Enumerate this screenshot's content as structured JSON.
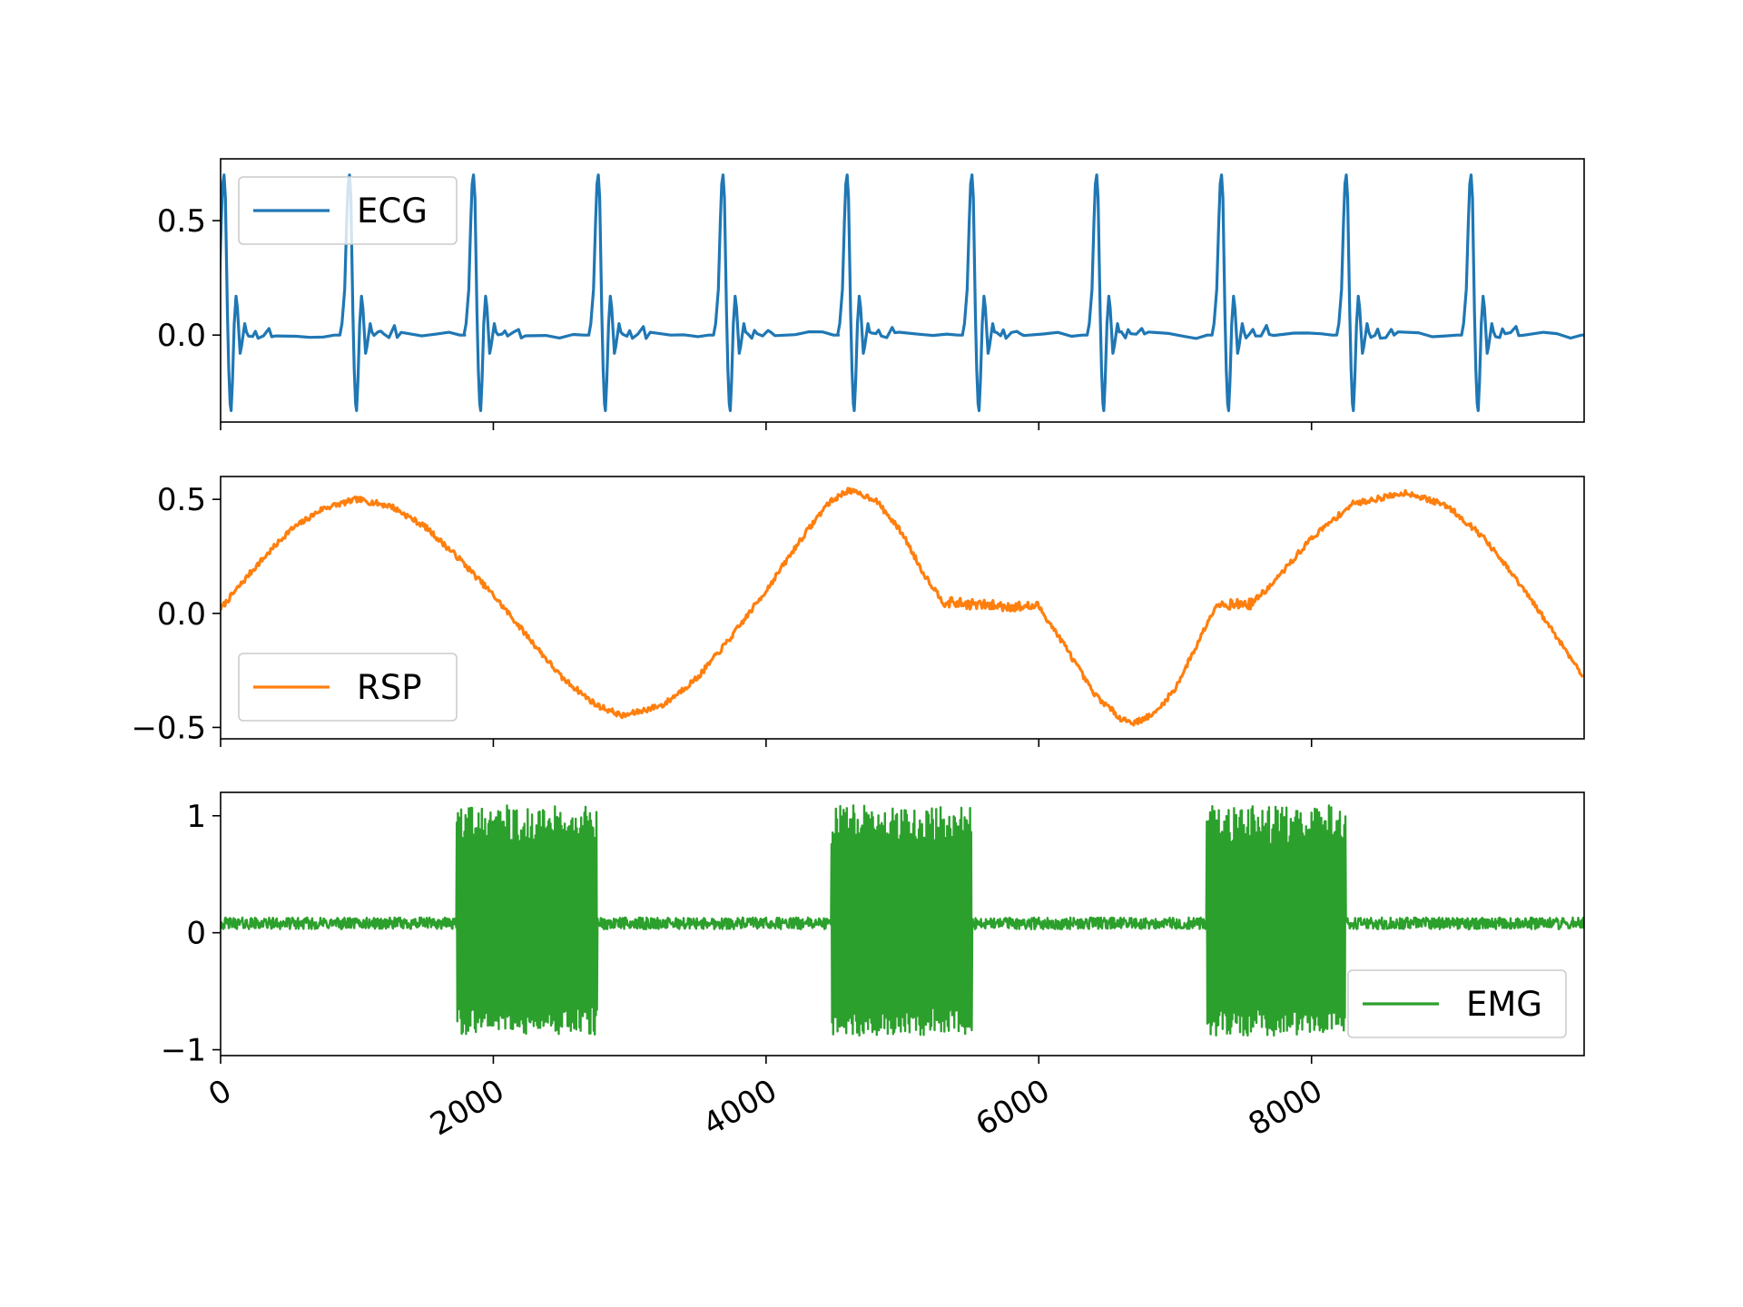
{
  "chart_data": [
    {
      "type": "line",
      "series": [
        {
          "name": "ECG",
          "color": "#1f77b4",
          "beat_onsets": [
            -45,
            875,
            1785,
            2700,
            3615,
            4525,
            5440,
            6355,
            7270,
            8185,
            9100
          ],
          "beat_waveform": [
            [
              0,
              0.0
            ],
            [
              15,
              0.05
            ],
            [
              35,
              0.2
            ],
            [
              50,
              0.5
            ],
            [
              60,
              0.66
            ],
            [
              70,
              0.7
            ],
            [
              80,
              0.6
            ],
            [
              95,
              0.1
            ],
            [
              105,
              -0.15
            ],
            [
              115,
              -0.3
            ],
            [
              122,
              -0.33
            ],
            [
              132,
              -0.2
            ],
            [
              145,
              0.05
            ],
            [
              158,
              0.17
            ],
            [
              168,
              0.12
            ],
            [
              180,
              0.0
            ],
            [
              188,
              -0.08
            ],
            [
              198,
              -0.05
            ],
            [
              210,
              0.0
            ],
            [
              222,
              0.05
            ],
            [
              235,
              0.02
            ],
            [
              250,
              0.0
            ],
            [
              280,
              0.0
            ],
            [
              300,
              0.02
            ],
            [
              320,
              0.0
            ],
            [
              360,
              0.0
            ],
            [
              400,
              0.03
            ],
            [
              420,
              0.0
            ],
            [
              450,
              0.0
            ],
            [
              600,
              0.0
            ],
            [
              700,
              0.0
            ],
            [
              800,
              0.0
            ],
            [
              880,
              0.0
            ],
            [
              915,
              0.0
            ]
          ]
        }
      ],
      "ylim": [
        -0.38,
        0.77
      ],
      "xlim": [
        0,
        9999
      ],
      "yticks": [
        0.0,
        0.5
      ],
      "ytick_labels": [
        "0.0",
        "0.5"
      ],
      "xticks": [
        0,
        2000,
        4000,
        6000,
        8000
      ],
      "legend_position": "upper left",
      "grid": false
    },
    {
      "type": "line",
      "series": [
        {
          "name": "RSP",
          "color": "#ff7f0e",
          "points": [
            [
              0,
              0.02
            ],
            [
              250,
              0.2
            ],
            [
              500,
              0.36
            ],
            [
              750,
              0.46
            ],
            [
              1000,
              0.5
            ],
            [
              1250,
              0.47
            ],
            [
              1500,
              0.38
            ],
            [
              1750,
              0.24
            ],
            [
              2000,
              0.08
            ],
            [
              2250,
              -0.1
            ],
            [
              2500,
              -0.28
            ],
            [
              2750,
              -0.4
            ],
            [
              2950,
              -0.45
            ],
            [
              3250,
              -0.4
            ],
            [
              3500,
              -0.28
            ],
            [
              3750,
              -0.1
            ],
            [
              4000,
              0.1
            ],
            [
              4250,
              0.32
            ],
            [
              4450,
              0.48
            ],
            [
              4600,
              0.54
            ],
            [
              4800,
              0.5
            ],
            [
              5000,
              0.35
            ],
            [
              5150,
              0.18
            ],
            [
              5300,
              0.05
            ],
            [
              5500,
              0.04
            ],
            [
              5800,
              0.03
            ],
            [
              6000,
              0.03
            ],
            [
              6200,
              -0.15
            ],
            [
              6400,
              -0.35
            ],
            [
              6600,
              -0.46
            ],
            [
              6700,
              -0.48
            ],
            [
              6850,
              -0.44
            ],
            [
              7000,
              -0.33
            ],
            [
              7150,
              -0.15
            ],
            [
              7300,
              0.04
            ],
            [
              7550,
              0.04
            ],
            [
              7700,
              0.12
            ],
            [
              8000,
              0.33
            ],
            [
              8300,
              0.48
            ],
            [
              8700,
              0.53
            ],
            [
              9000,
              0.47
            ],
            [
              9250,
              0.34
            ],
            [
              9500,
              0.15
            ],
            [
              9750,
              -0.06
            ],
            [
              9999,
              -0.28
            ]
          ]
        }
      ],
      "ylim": [
        -0.55,
        0.6
      ],
      "xlim": [
        0,
        9999
      ],
      "yticks": [
        -0.5,
        0.0,
        0.5
      ],
      "ytick_labels": [
        "−0.5",
        "0.0",
        "0.5"
      ],
      "xticks": [
        0,
        2000,
        4000,
        6000,
        8000
      ],
      "legend_position": "lower left",
      "grid": false
    },
    {
      "type": "line",
      "series": [
        {
          "name": "EMG",
          "color": "#2ca02c",
          "baseline": 0.08,
          "baseline_noise": 0.05,
          "bursts": [
            {
              "start": 1730,
              "end": 2760,
              "low": -0.88,
              "high": 1.09
            },
            {
              "start": 4480,
              "end": 5510,
              "low": -0.88,
              "high": 1.09
            },
            {
              "start": 7230,
              "end": 8250,
              "low": -0.88,
              "high": 1.09
            }
          ]
        }
      ],
      "ylim": [
        -1.05,
        1.2
      ],
      "xlim": [
        0,
        9999
      ],
      "yticks": [
        -1,
        0,
        1
      ],
      "ytick_labels": [
        "−1",
        "0",
        "1"
      ],
      "xticks": [
        0,
        2000,
        4000,
        6000,
        8000
      ],
      "xtick_labels": [
        "0",
        "2000",
        "4000",
        "6000",
        "8000"
      ],
      "legend_position": "lower right",
      "grid": false
    }
  ]
}
